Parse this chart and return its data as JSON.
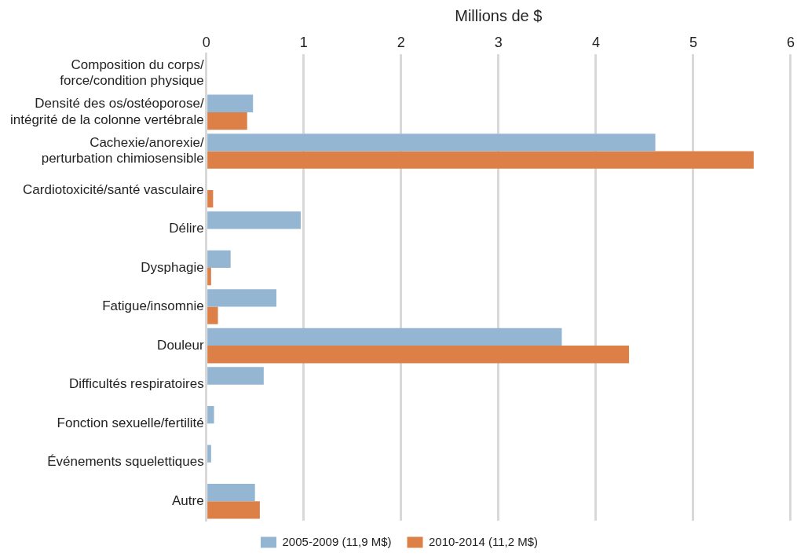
{
  "chart_data": {
    "type": "bar",
    "orientation": "horizontal",
    "xlabel": "Millions de $",
    "categories": [
      "Composition du corps/ force/condition physique",
      "Densité des os/ostéoporose/ intégrité de la colonne vertébrale",
      "Cachexie/anorexie/ perturbation chimiosensible",
      "Cardiotoxicité/santé vasculaire",
      "Délire",
      "Dysphagie",
      "Fatigue/insomnie",
      "Douleur",
      "Difficultés respiratoires",
      "Fonction sexuelle/fertilité",
      "Événements squelettiques",
      "Autre"
    ],
    "series": [
      {
        "name": "2005-2009 (11,9 M$)",
        "color": "#94b6d2",
        "values": [
          0,
          0.48,
          4.61,
          0,
          0.97,
          0.25,
          0.72,
          3.65,
          0.59,
          0.08,
          0.05,
          0.5
        ]
      },
      {
        "name": "2010-2014 (11,2 M$)",
        "color": "#dd8047",
        "values": [
          0,
          0.42,
          5.62,
          0.07,
          0,
          0.05,
          0.12,
          4.34,
          0,
          null,
          0,
          0.55
        ]
      }
    ],
    "xlim": [
      0,
      6
    ],
    "xticks": [
      0,
      1,
      2,
      3,
      4,
      5,
      6
    ],
    "grid": "x",
    "legend": "bottom"
  }
}
